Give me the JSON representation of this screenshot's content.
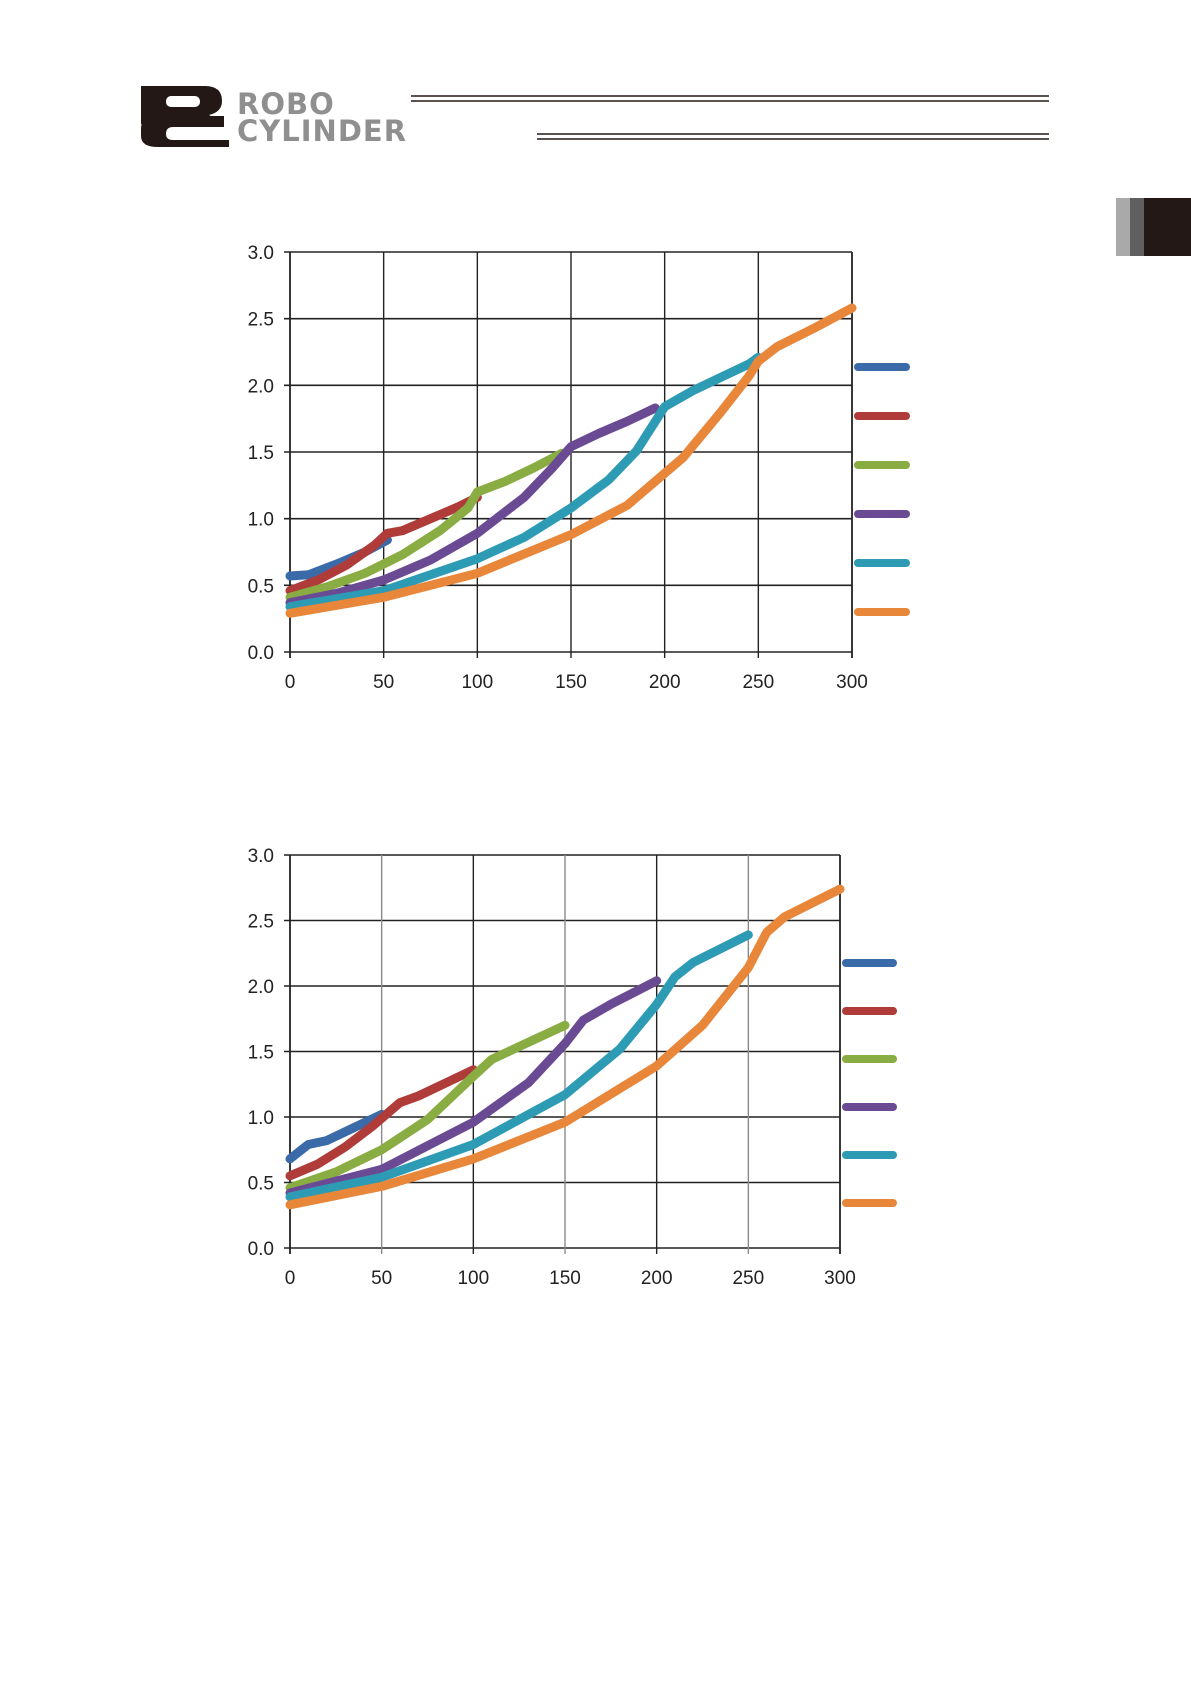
{
  "header": {
    "logo_mark": "RC",
    "brand_line1": "ROBO",
    "brand_line2": "CYLINDER"
  },
  "chart_data": [
    {
      "type": "line",
      "title": "",
      "xlabel": "",
      "ylabel": "",
      "xlim": [
        0,
        300
      ],
      "ylim": [
        0,
        3.0
      ],
      "x_ticks": [
        "0",
        "50",
        "100",
        "150",
        "200",
        "250",
        "300"
      ],
      "y_ticks": [
        "3.0",
        "2.5",
        "2.0",
        "1.5",
        "1.0",
        "0.5",
        "0.0"
      ],
      "grid": true,
      "legend_position": "right",
      "series": [
        {
          "color": "#3b6aa8",
          "x": [
            0,
            10,
            25,
            40,
            52
          ],
          "y": [
            0.57,
            0.58,
            0.66,
            0.75,
            0.84
          ]
        },
        {
          "color": "#b03c3a",
          "x": [
            0,
            15,
            30,
            45,
            52,
            60,
            75,
            90,
            100
          ],
          "y": [
            0.46,
            0.54,
            0.65,
            0.8,
            0.89,
            0.91,
            1.0,
            1.09,
            1.16
          ]
        },
        {
          "color": "#8aad43",
          "x": [
            0,
            20,
            40,
            60,
            80,
            95,
            100,
            115,
            130,
            145
          ],
          "y": [
            0.41,
            0.49,
            0.59,
            0.73,
            0.91,
            1.08,
            1.2,
            1.28,
            1.38,
            1.49
          ]
        },
        {
          "color": "#6b4a94",
          "x": [
            0,
            25,
            50,
            75,
            100,
            125,
            140,
            150,
            165,
            180,
            195
          ],
          "y": [
            0.37,
            0.44,
            0.54,
            0.69,
            0.89,
            1.16,
            1.38,
            1.54,
            1.64,
            1.73,
            1.83
          ]
        },
        {
          "color": "#2e9bb4",
          "x": [
            0,
            50,
            100,
            125,
            150,
            170,
            185,
            200,
            215,
            230,
            245,
            250
          ],
          "y": [
            0.34,
            0.46,
            0.7,
            0.86,
            1.08,
            1.29,
            1.51,
            1.84,
            1.96,
            2.06,
            2.16,
            2.21
          ]
        },
        {
          "color": "#e8873a",
          "x": [
            0,
            50,
            100,
            150,
            180,
            210,
            230,
            245,
            250,
            260,
            280,
            300
          ],
          "y": [
            0.29,
            0.41,
            0.59,
            0.88,
            1.1,
            1.46,
            1.8,
            2.07,
            2.18,
            2.29,
            2.43,
            2.58
          ]
        }
      ]
    },
    {
      "type": "line",
      "title": "",
      "xlabel": "",
      "ylabel": "",
      "xlim": [
        0,
        300
      ],
      "ylim": [
        0,
        3.0
      ],
      "x_ticks": [
        "0",
        "50",
        "100",
        "150",
        "200",
        "250",
        "300"
      ],
      "y_ticks": [
        "3.0",
        "2.5",
        "2.0",
        "1.5",
        "1.0",
        "0.5",
        "0.0"
      ],
      "grid": true,
      "legend_position": "right",
      "series": [
        {
          "color": "#3b6aa8",
          "x": [
            0,
            10,
            20,
            35,
            50
          ],
          "y": [
            0.68,
            0.79,
            0.82,
            0.92,
            1.02
          ]
        },
        {
          "color": "#b03c3a",
          "x": [
            0,
            15,
            30,
            45,
            60,
            70,
            85,
            100
          ],
          "y": [
            0.55,
            0.64,
            0.77,
            0.93,
            1.11,
            1.16,
            1.26,
            1.36
          ]
        },
        {
          "color": "#8aad43",
          "x": [
            0,
            25,
            50,
            75,
            100,
            110,
            130,
            150
          ],
          "y": [
            0.46,
            0.58,
            0.75,
            0.98,
            1.31,
            1.44,
            1.57,
            1.7
          ]
        },
        {
          "color": "#6b4a94",
          "x": [
            0,
            50,
            100,
            130,
            150,
            160,
            175,
            200
          ],
          "y": [
            0.42,
            0.6,
            0.96,
            1.26,
            1.56,
            1.74,
            1.86,
            2.04
          ]
        },
        {
          "color": "#2e9bb4",
          "x": [
            0,
            50,
            100,
            150,
            180,
            200,
            210,
            220,
            250
          ],
          "y": [
            0.39,
            0.54,
            0.79,
            1.17,
            1.52,
            1.86,
            2.07,
            2.18,
            2.39
          ]
        },
        {
          "color": "#e8873a",
          "x": [
            0,
            50,
            100,
            150,
            200,
            225,
            250,
            260,
            270,
            300
          ],
          "y": [
            0.33,
            0.47,
            0.68,
            0.96,
            1.39,
            1.7,
            2.14,
            2.41,
            2.53,
            2.74
          ]
        }
      ]
    }
  ]
}
